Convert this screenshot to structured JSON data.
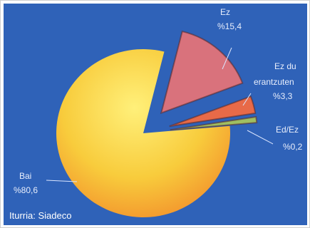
{
  "chart_data": {
    "type": "pie",
    "title": "",
    "slices": [
      {
        "label": "Bai",
        "value_text": "%80,6",
        "value": 80.6,
        "color": "#f6c63a",
        "exploded": false
      },
      {
        "label": "Ez",
        "value_text": "%15,4",
        "value": 15.4,
        "color": "#d9727c",
        "exploded": true
      },
      {
        "label": "Ez du",
        "label2": "erantzuten",
        "value_text": "%3,3",
        "value": 3.3,
        "color": "#e86a48",
        "exploded": true
      },
      {
        "label": "Ed/Ez",
        "value_text": "%0,2",
        "value": 0.2,
        "color": "#9fbf62",
        "exploded": true
      }
    ]
  },
  "source": "Iturria: Siadeco"
}
